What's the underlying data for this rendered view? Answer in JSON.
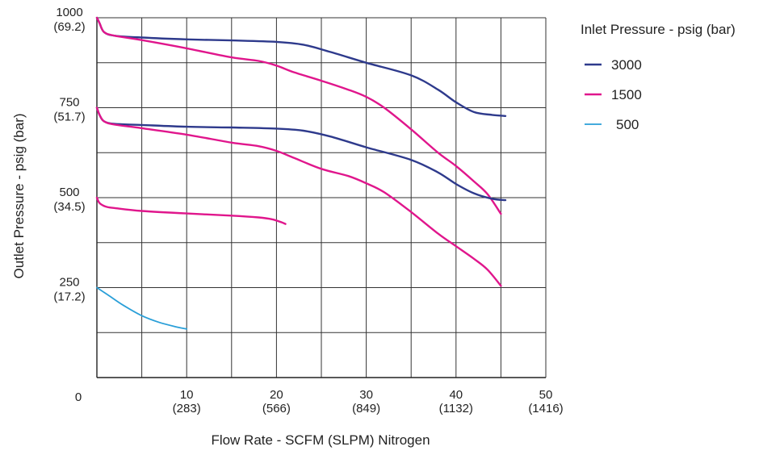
{
  "chart_data": {
    "type": "line",
    "title": "",
    "xlabel": "Flow Rate - SCFM (SLPM) Nitrogen",
    "ylabel": "Outlet Pressure - psig (bar)",
    "xlim": [
      0,
      50
    ],
    "ylim": [
      0,
      1000
    ],
    "grid": true,
    "x_ticks": [
      {
        "value": 0,
        "label": "0",
        "sub": ""
      },
      {
        "value": 10,
        "label": "10",
        "sub": "(283)"
      },
      {
        "value": 20,
        "label": "20",
        "sub": "(566)"
      },
      {
        "value": 30,
        "label": "30",
        "sub": "(849)"
      },
      {
        "value": 40,
        "label": "40",
        "sub": "(1132)"
      },
      {
        "value": 50,
        "label": "50",
        "sub": "(1416)"
      }
    ],
    "y_ticks": [
      {
        "value": 250,
        "label": "250",
        "sub": "(17.2)"
      },
      {
        "value": 500,
        "label": "500",
        "sub": "(34.5)"
      },
      {
        "value": 750,
        "label": "750",
        "sub": "(51.7)"
      },
      {
        "value": 1000,
        "label": "1000",
        "sub": "(69.2)"
      }
    ],
    "legend": {
      "title": "Inlet Pressure - psig (bar)",
      "placement": "right",
      "entries": [
        {
          "label": "3000",
          "color": "#2e3a8c"
        },
        {
          "label": "1500",
          "color": "#e0168c"
        },
        {
          "label": "500",
          "color": "#2a9fd8"
        }
      ]
    },
    "series": [
      {
        "inlet": "3000",
        "color": "#2e3a8c",
        "points": [
          [
            0,
            1000
          ],
          [
            0.3,
            985
          ],
          [
            0.8,
            960
          ],
          [
            2,
            950
          ],
          [
            5,
            945
          ],
          [
            10,
            940
          ],
          [
            15,
            937
          ],
          [
            20,
            933
          ],
          [
            23,
            925
          ],
          [
            26,
            905
          ],
          [
            30,
            875
          ],
          [
            35,
            840
          ],
          [
            38,
            800
          ],
          [
            40,
            765
          ],
          [
            42,
            738
          ],
          [
            44,
            730
          ],
          [
            45.5,
            727
          ]
        ]
      },
      {
        "inlet": "1500",
        "color": "#e0168c",
        "points": [
          [
            0,
            1000
          ],
          [
            0.3,
            985
          ],
          [
            0.8,
            960
          ],
          [
            2,
            950
          ],
          [
            5,
            938
          ],
          [
            10,
            915
          ],
          [
            15,
            890
          ],
          [
            18,
            880
          ],
          [
            20,
            867
          ],
          [
            22,
            848
          ],
          [
            25,
            825
          ],
          [
            28,
            800
          ],
          [
            30,
            780
          ],
          [
            32,
            750
          ],
          [
            35,
            690
          ],
          [
            38,
            625
          ],
          [
            40,
            588
          ],
          [
            42,
            545
          ],
          [
            43.5,
            510
          ],
          [
            45,
            455
          ]
        ]
      },
      {
        "inlet": "3000",
        "color": "#2e3a8c",
        "points": [
          [
            0,
            750
          ],
          [
            0.3,
            730
          ],
          [
            0.8,
            712
          ],
          [
            2,
            705
          ],
          [
            5,
            702
          ],
          [
            10,
            697
          ],
          [
            15,
            695
          ],
          [
            20,
            692
          ],
          [
            23,
            686
          ],
          [
            26,
            670
          ],
          [
            30,
            640
          ],
          [
            35,
            605
          ],
          [
            38,
            570
          ],
          [
            40,
            538
          ],
          [
            42,
            512
          ],
          [
            44,
            497
          ],
          [
            45.5,
            493
          ]
        ]
      },
      {
        "inlet": "1500",
        "color": "#e0168c",
        "points": [
          [
            0,
            750
          ],
          [
            0.3,
            730
          ],
          [
            0.8,
            712
          ],
          [
            2,
            703
          ],
          [
            5,
            693
          ],
          [
            10,
            675
          ],
          [
            15,
            653
          ],
          [
            18,
            643
          ],
          [
            20,
            630
          ],
          [
            22,
            610
          ],
          [
            25,
            580
          ],
          [
            28,
            560
          ],
          [
            30,
            540
          ],
          [
            32,
            515
          ],
          [
            35,
            460
          ],
          [
            38,
            400
          ],
          [
            40,
            365
          ],
          [
            42,
            330
          ],
          [
            43.5,
            300
          ],
          [
            45,
            255
          ]
        ]
      },
      {
        "inlet": "1500",
        "color": "#e0168c",
        "points": [
          [
            0,
            500
          ],
          [
            0.3,
            485
          ],
          [
            1,
            475
          ],
          [
            2,
            471
          ],
          [
            5,
            463
          ],
          [
            10,
            456
          ],
          [
            15,
            450
          ],
          [
            18,
            445
          ],
          [
            19.5,
            440
          ],
          [
            20.5,
            432
          ],
          [
            21,
            427
          ]
        ]
      },
      {
        "inlet": "500",
        "color": "#2a9fd8",
        "points": [
          [
            0,
            250
          ],
          [
            1.5,
            225
          ],
          [
            3,
            200
          ],
          [
            5,
            172
          ],
          [
            7,
            153
          ],
          [
            9,
            140
          ],
          [
            10,
            135
          ]
        ]
      }
    ]
  }
}
